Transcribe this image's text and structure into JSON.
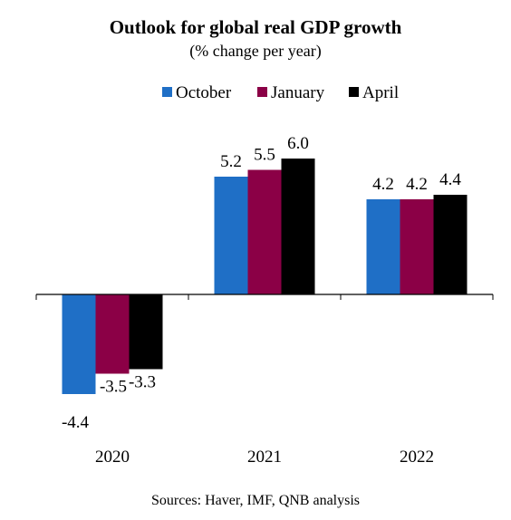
{
  "chart_data": {
    "type": "bar",
    "title": "Outlook for global real GDP growth",
    "subtitle": "(% change per year)",
    "categories": [
      "2020",
      "2021",
      "2022"
    ],
    "series": [
      {
        "name": "October",
        "color": "#1F6FC6",
        "values": [
          -4.4,
          5.2,
          4.2
        ],
        "labels": [
          "-4.4",
          "5.2",
          "4.2"
        ]
      },
      {
        "name": "January",
        "color": "#8B0046",
        "values": [
          -3.5,
          5.5,
          4.2
        ],
        "labels": [
          "-3.5",
          "5.5",
          "4.2"
        ]
      },
      {
        "name": "April",
        "color": "#000000",
        "values": [
          -3.3,
          6.0,
          4.4
        ],
        "labels": [
          "-3.3",
          "6.0",
          "4.4"
        ]
      }
    ],
    "ylim": [
      -5.0,
      6.6
    ],
    "grid": false,
    "legend": "top",
    "source": "Sources: Haver, IMF, QNB analysis"
  }
}
